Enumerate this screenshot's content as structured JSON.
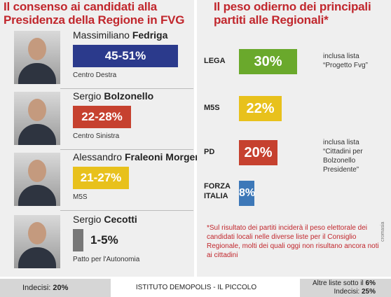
{
  "left_title": "Il consenso ai candidati alla Presidenza della Regione in FVG",
  "right_title": "Il peso odierno dei principali partiti alle Regionali*",
  "chart_data": [
    {
      "type": "bar",
      "title": "Il consenso ai candidati alla Presidenza della Regione in FVG",
      "candidates": [
        {
          "first": "Massimiliano",
          "last": "Fedriga",
          "range": "45-51%",
          "low": 45,
          "high": 51,
          "coalition": "Centro Destra",
          "color": "#2b3a8c"
        },
        {
          "first": "Sergio",
          "last": "Bolzonello",
          "range": "22-28%",
          "low": 22,
          "high": 28,
          "coalition": "Centro Sinistra",
          "color": "#c6412f"
        },
        {
          "first": "Alessandro",
          "last": "Fraleoni Morgera",
          "range": "21-27%",
          "low": 21,
          "high": 27,
          "coalition": "M5S",
          "color": "#e8c11c"
        },
        {
          "first": "Sergio",
          "last": "Cecotti",
          "range": "1-5%",
          "low": 1,
          "high": 5,
          "coalition": "Patto per l'Autonomia",
          "color": "#777777"
        }
      ]
    },
    {
      "type": "bar",
      "title": "Il peso odierno dei principali partiti alle Regionali*",
      "parties": [
        {
          "name": "LEGA",
          "value": 30,
          "label": "30%",
          "note": "inclusa lista “Progetto Fvg”",
          "color": "#6aa92c"
        },
        {
          "name": "M5S",
          "value": 22,
          "label": "22%",
          "note": "",
          "color": "#e8c11c"
        },
        {
          "name": "PD",
          "value": 20,
          "label": "20%",
          "note": "inclusa lista “Cittadini per Bolzonello Presidente”",
          "color": "#c6412f"
        },
        {
          "name": "FORZA ITALIA",
          "value": 8,
          "label": "8%",
          "note": "",
          "color": "#3d78b8"
        }
      ]
    }
  ],
  "footnote": "*Sul risultato dei partiti inciderà il peso elettorale dei candidati locali nelle diverse liste per il Consiglio Regionale, molti dei quali oggi non risultano ancora noti ai cittadini",
  "credit": "cromasia",
  "bottom": {
    "indecisi_left_label": "Indecisi: ",
    "indecisi_left_value": "20%",
    "source": "ISTITUTO DEMOPOLIS - IL PICCOLO",
    "altre_label": "Altre liste sotto il ",
    "altre_value": "6%",
    "indecisi_right_label": "Indecisi: ",
    "indecisi_right_value": "25%"
  }
}
